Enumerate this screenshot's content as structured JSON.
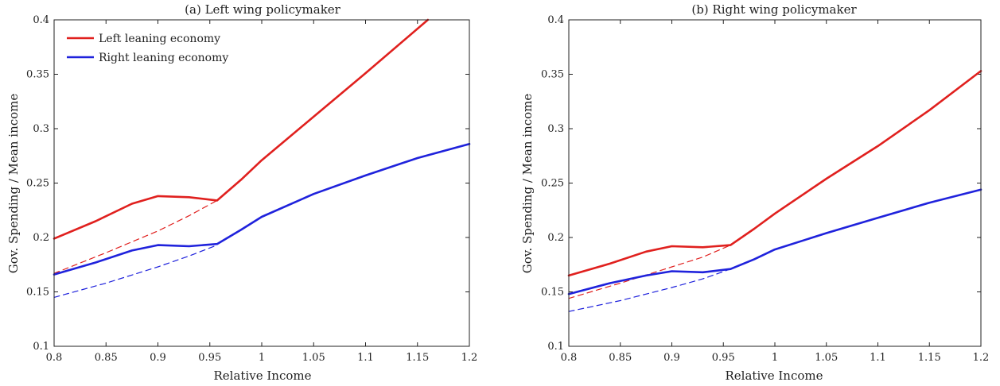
{
  "chart_data": [
    {
      "type": "line",
      "title": "(a) Left wing policymaker",
      "xlabel": "Relative Income",
      "ylabel": "Gov. Spending / Mean income",
      "xlim": [
        0.8,
        1.2
      ],
      "ylim": [
        0.1,
        0.4
      ],
      "xticks": [
        "0.8",
        "0.85",
        "0.9",
        "0.95",
        "1",
        "1.05",
        "1.1",
        "1.15",
        "1.2"
      ],
      "yticks": [
        "0.1",
        "0.15",
        "0.2",
        "0.25",
        "0.3",
        "0.35",
        "0.4"
      ],
      "grid": false,
      "legend": {
        "position": "top-left",
        "entries": [
          {
            "label": "Left leaning economy",
            "color": "#e0201e"
          },
          {
            "label": "Right leaning economy",
            "color": "#1f22dc"
          }
        ]
      },
      "series": [
        {
          "name": "Left leaning economy",
          "color": "#e0201e",
          "style": "solid",
          "x": [
            0.8,
            0.84,
            0.875,
            0.9,
            0.93,
            0.957,
            0.98,
            1.0,
            1.05,
            1.1,
            1.16
          ],
          "y": [
            0.199,
            0.215,
            0.231,
            0.238,
            0.237,
            0.234,
            0.253,
            0.271,
            0.311,
            0.351,
            0.4
          ]
        },
        {
          "name": "Left leaning economy",
          "color": "#e0201e",
          "style": "dashed",
          "x": [
            0.8,
            0.85,
            0.9,
            0.93,
            0.957
          ],
          "y": [
            0.167,
            0.186,
            0.206,
            0.22,
            0.234
          ]
        },
        {
          "name": "Right leaning economy",
          "color": "#1f22dc",
          "style": "solid",
          "x": [
            0.8,
            0.84,
            0.875,
            0.9,
            0.93,
            0.957,
            0.98,
            1.0,
            1.05,
            1.1,
            1.15,
            1.2
          ],
          "y": [
            0.166,
            0.177,
            0.188,
            0.193,
            0.192,
            0.194,
            0.207,
            0.219,
            0.24,
            0.257,
            0.273,
            0.286
          ]
        },
        {
          "name": "Right leaning economy",
          "color": "#1f22dc",
          "style": "dashed",
          "x": [
            0.8,
            0.85,
            0.9,
            0.93,
            0.957
          ],
          "y": [
            0.145,
            0.158,
            0.173,
            0.183,
            0.193
          ]
        }
      ]
    },
    {
      "type": "line",
      "title": "(b) Right wing policymaker",
      "xlabel": "Relative Income",
      "ylabel": "Gov. Spending / Mean income",
      "xlim": [
        0.8,
        1.2
      ],
      "ylim": [
        0.1,
        0.4
      ],
      "xticks": [
        "0.8",
        "0.85",
        "0.9",
        "0.95",
        "1",
        "1.05",
        "1.1",
        "1.15",
        "1.2"
      ],
      "yticks": [
        "0.1",
        "0.15",
        "0.2",
        "0.25",
        "0.3",
        "0.35",
        "0.4"
      ],
      "grid": false,
      "series": [
        {
          "name": "Left leaning economy",
          "color": "#e0201e",
          "style": "solid",
          "x": [
            0.8,
            0.84,
            0.875,
            0.9,
            0.93,
            0.957,
            0.98,
            1.0,
            1.05,
            1.1,
            1.15,
            1.2
          ],
          "y": [
            0.165,
            0.176,
            0.187,
            0.192,
            0.191,
            0.193,
            0.208,
            0.222,
            0.254,
            0.284,
            0.317,
            0.353
          ]
        },
        {
          "name": "Left leaning economy",
          "color": "#e0201e",
          "style": "dashed",
          "x": [
            0.8,
            0.85,
            0.9,
            0.93,
            0.957
          ],
          "y": [
            0.144,
            0.158,
            0.173,
            0.182,
            0.193
          ]
        },
        {
          "name": "Right leaning economy",
          "color": "#1f22dc",
          "style": "solid",
          "x": [
            0.8,
            0.84,
            0.875,
            0.9,
            0.93,
            0.957,
            0.98,
            1.0,
            1.05,
            1.1,
            1.15,
            1.2
          ],
          "y": [
            0.148,
            0.158,
            0.165,
            0.169,
            0.168,
            0.171,
            0.18,
            0.189,
            0.204,
            0.218,
            0.232,
            0.244
          ]
        },
        {
          "name": "Right leaning economy",
          "color": "#1f22dc",
          "style": "dashed",
          "x": [
            0.8,
            0.85,
            0.9,
            0.93,
            0.957
          ],
          "y": [
            0.132,
            0.142,
            0.154,
            0.162,
            0.171
          ]
        }
      ]
    }
  ]
}
